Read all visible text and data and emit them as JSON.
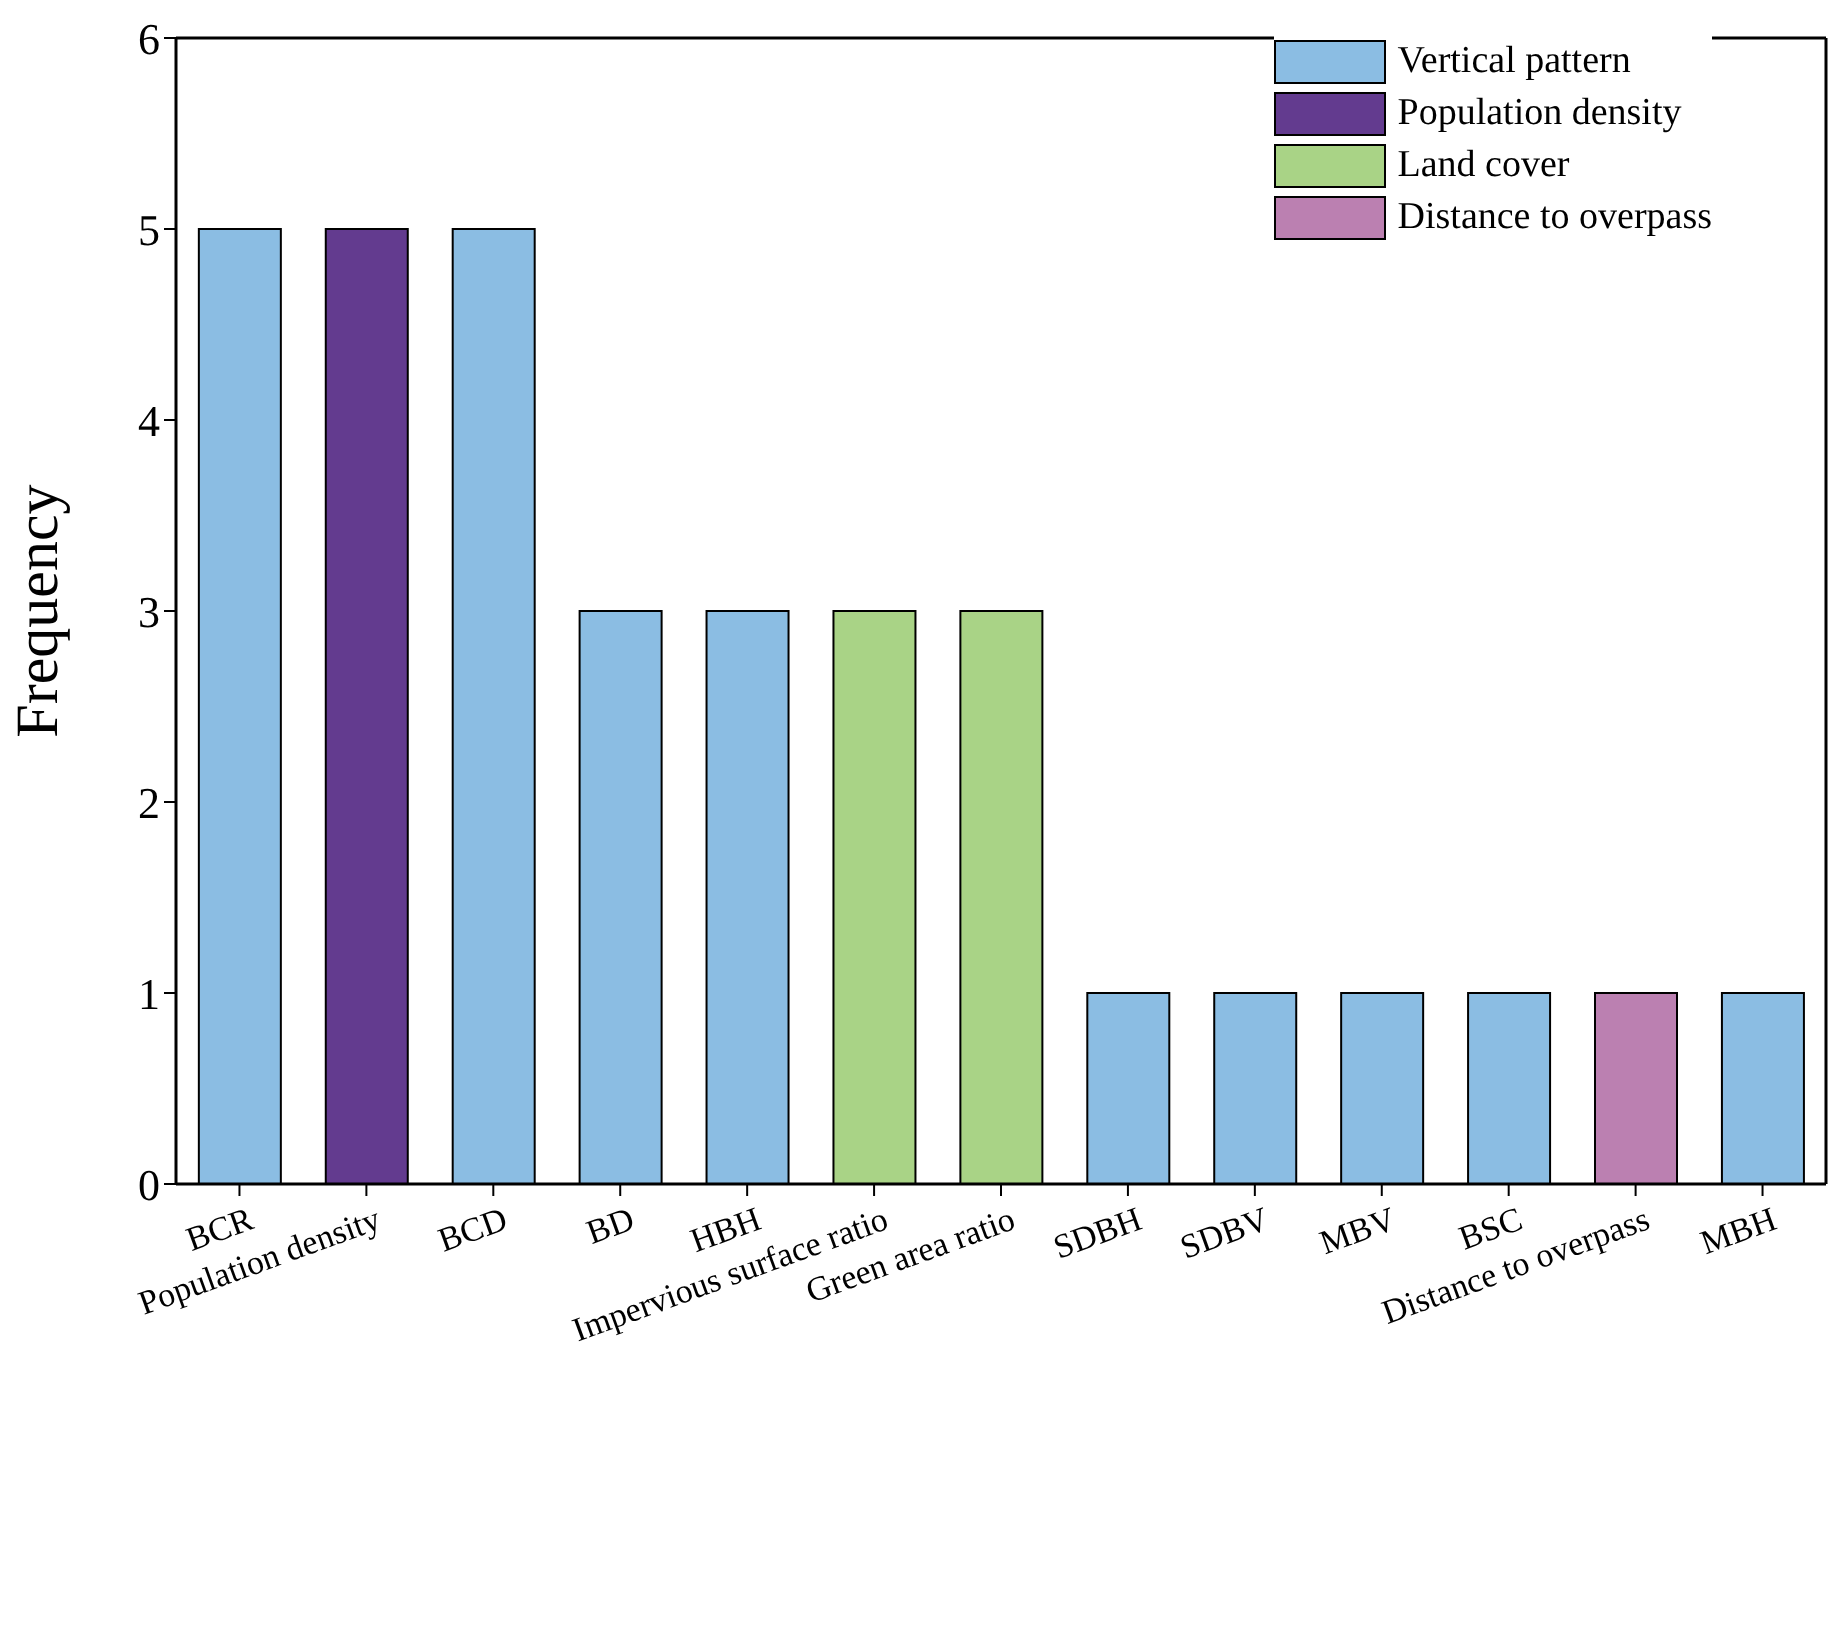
{
  "chart_data": {
    "type": "bar",
    "stacked": true,
    "ylabel": "Frequency",
    "categories": [
      "BCR",
      "Population density",
      "BCD",
      "BD",
      "HBH",
      "Impervious surface ratio",
      "Green area ratio",
      "SDBH",
      "SDBV",
      "MBV",
      "BSC",
      "Distance to overpass",
      "MBH"
    ],
    "series": [
      {
        "name": "Vertical pattern",
        "color": "#8bbde3",
        "values": [
          5,
          null,
          5,
          3,
          3,
          null,
          null,
          1,
          1,
          1,
          1,
          null,
          1
        ]
      },
      {
        "name": "Population density",
        "color": "#633b8f",
        "values": [
          null,
          5,
          null,
          null,
          null,
          null,
          null,
          null,
          null,
          null,
          null,
          null,
          null
        ]
      },
      {
        "name": "Land cover",
        "color": "#a9d386",
        "values": [
          null,
          null,
          null,
          null,
          null,
          3,
          3,
          null,
          null,
          null,
          null,
          null,
          null
        ]
      },
      {
        "name": "Distance to overpass",
        "color": "#bb80b1",
        "values": [
          null,
          null,
          null,
          null,
          null,
          null,
          null,
          null,
          null,
          null,
          null,
          1,
          null
        ]
      }
    ],
    "ylim": [
      0,
      6
    ],
    "yticks": [
      0,
      1,
      2,
      3,
      4,
      5,
      6
    ],
    "legend": "top right"
  }
}
